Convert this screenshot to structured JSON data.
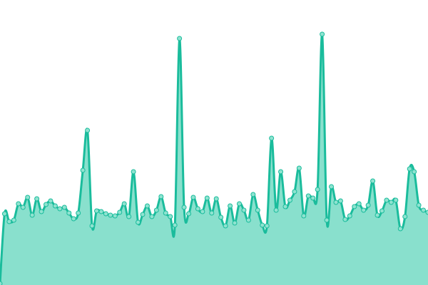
{
  "chart_data": {
    "type": "area",
    "title": "",
    "xlabel": "",
    "ylabel": "",
    "ylim": [
      0,
      400
    ],
    "grid": false,
    "legend": "none",
    "colors": {
      "line": "#1abc9c",
      "fill": "#89e0cd",
      "marker_fill": "#8fe3d0"
    },
    "x": [
      0,
      1,
      2,
      3,
      4,
      5,
      6,
      7,
      8,
      9,
      10,
      11,
      12,
      13,
      14,
      15,
      16,
      17,
      18,
      19,
      20,
      21,
      22,
      23,
      24,
      25,
      26,
      27,
      28,
      29,
      30,
      31,
      32,
      33,
      34,
      35,
      36,
      37,
      38,
      39,
      40,
      41,
      42,
      43,
      44,
      45,
      46,
      47,
      48,
      49,
      50,
      51,
      52,
      53,
      54,
      55,
      56,
      57,
      58,
      59,
      60,
      61,
      62,
      63,
      64,
      65,
      66,
      67,
      68,
      69,
      70,
      71,
      72,
      73,
      74,
      75,
      76,
      77,
      78,
      79,
      80,
      81,
      82,
      83,
      84,
      85,
      86,
      87,
      88,
      89,
      90,
      91,
      92,
      93
    ],
    "values": [
      2,
      100,
      89,
      91,
      114,
      109,
      123,
      98,
      121,
      103,
      113,
      118,
      111,
      107,
      109,
      101,
      93,
      101,
      161,
      217,
      83,
      104,
      103,
      100,
      98,
      97,
      102,
      114,
      96,
      159,
      88,
      99,
      111,
      96,
      105,
      124,
      101,
      96,
      84,
      346,
      109,
      100,
      123,
      107,
      103,
      122,
      101,
      121,
      95,
      83,
      111,
      87,
      114,
      105,
      91,
      127,
      105,
      84,
      83,
      206,
      105,
      159,
      110,
      119,
      131,
      164,
      97,
      125,
      122,
      134,
      352,
      91,
      138,
      116,
      118,
      92,
      97,
      110,
      114,
      105,
      112,
      146,
      98,
      104,
      119,
      116,
      119,
      79,
      96,
      163,
      159,
      112,
      105,
      102
    ]
  }
}
